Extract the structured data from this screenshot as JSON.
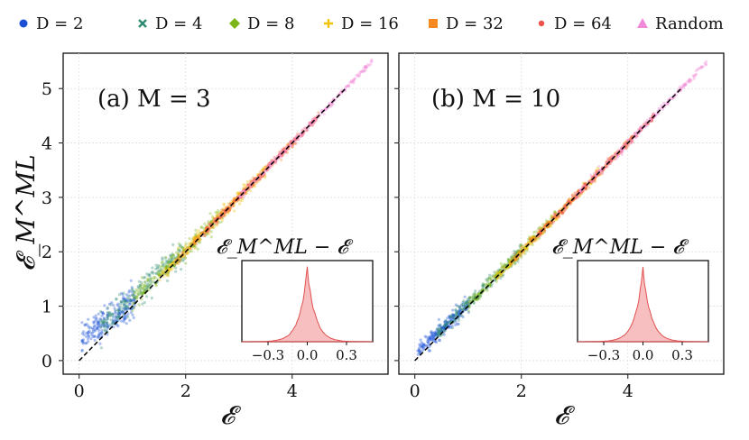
{
  "legend": [
    {
      "label": "D = 2",
      "color": "#1a4fd6",
      "marker": "circle"
    },
    {
      "label": "D = 4",
      "color": "#2e8b72",
      "marker": "x"
    },
    {
      "label": "D = 8",
      "color": "#7cb518",
      "marker": "diamond"
    },
    {
      "label": "D = 16",
      "color": "#f2c40c",
      "marker": "plus"
    },
    {
      "label": "D = 32",
      "color": "#f5891f",
      "marker": "square"
    },
    {
      "label": "D = 64",
      "color": "#f0524a",
      "marker": "dot"
    },
    {
      "label": "Random",
      "color": "#f08ad8",
      "marker": "triangle"
    }
  ],
  "axes": {
    "ylabel": "𝓔_M^ML",
    "xlabel": "𝓔",
    "xticks": [
      0,
      2,
      4
    ],
    "yticks": [
      0,
      1,
      2,
      3,
      4,
      5
    ],
    "xlim": [
      -0.3,
      5.8
    ],
    "ylim": [
      -0.25,
      5.65
    ]
  },
  "inset": {
    "title": "𝓔_M^ML − 𝓔",
    "xticks": [
      "−0.3",
      "0.0",
      "0.3"
    ],
    "xlim": [
      -0.5,
      0.5
    ],
    "color": "#f08080"
  },
  "chart_data": [
    {
      "type": "scatter",
      "title": "(a) M = 3",
      "xlabel": "𝓔",
      "ylabel": "𝓔_M^ML",
      "xlim": [
        -0.3,
        5.8
      ],
      "ylim": [
        -0.25,
        5.65
      ],
      "reference_line": {
        "x": [
          0,
          5
        ],
        "y": [
          0,
          5
        ],
        "style": "dashed"
      },
      "series": [
        {
          "name": "D = 2",
          "x_range": [
            0.05,
            1.05
          ],
          "spread": 0.28,
          "bias": 0.35
        },
        {
          "name": "D = 4",
          "x_range": [
            0.4,
            2.0
          ],
          "spread": 0.22,
          "bias": 0.2
        },
        {
          "name": "D = 8",
          "x_range": [
            1.0,
            2.7
          ],
          "spread": 0.18,
          "bias": 0.08
        },
        {
          "name": "D = 16",
          "x_range": [
            1.5,
            3.5
          ],
          "spread": 0.12,
          "bias": 0.02
        },
        {
          "name": "D = 32",
          "x_range": [
            1.8,
            4.1
          ],
          "spread": 0.08,
          "bias": 0.0
        },
        {
          "name": "D = 64",
          "x_range": [
            2.3,
            4.5
          ],
          "spread": 0.06,
          "bias": 0.0
        },
        {
          "name": "Random",
          "x_range": [
            3.0,
            5.5
          ],
          "spread": 0.05,
          "bias": 0.0
        }
      ],
      "inset_hist": {
        "center": 0.0,
        "width": 0.06,
        "xlim": [
          -0.5,
          0.5
        ]
      }
    },
    {
      "type": "scatter",
      "title": "(b) M = 10",
      "xlabel": "𝓔",
      "ylabel": "",
      "xlim": [
        -0.3,
        5.8
      ],
      "ylim": [
        -0.25,
        5.65
      ],
      "reference_line": {
        "x": [
          0,
          5
        ],
        "y": [
          0,
          5
        ],
        "style": "dashed"
      },
      "series": [
        {
          "name": "D = 2",
          "x_range": [
            0.05,
            1.05
          ],
          "spread": 0.14,
          "bias": 0.1
        },
        {
          "name": "D = 4",
          "x_range": [
            0.4,
            2.0
          ],
          "spread": 0.12,
          "bias": 0.06
        },
        {
          "name": "D = 8",
          "x_range": [
            1.0,
            2.7
          ],
          "spread": 0.1,
          "bias": 0.03
        },
        {
          "name": "D = 16",
          "x_range": [
            1.5,
            3.5
          ],
          "spread": 0.08,
          "bias": 0.0
        },
        {
          "name": "D = 32",
          "x_range": [
            1.8,
            4.1
          ],
          "spread": 0.07,
          "bias": 0.0
        },
        {
          "name": "D = 64",
          "x_range": [
            2.3,
            4.5
          ],
          "spread": 0.06,
          "bias": 0.0
        },
        {
          "name": "Random",
          "x_range": [
            3.0,
            5.5
          ],
          "spread": 0.06,
          "bias": 0.0
        }
      ],
      "inset_hist": {
        "center": 0.0,
        "width": 0.06,
        "xlim": [
          -0.5,
          0.5
        ]
      }
    }
  ]
}
